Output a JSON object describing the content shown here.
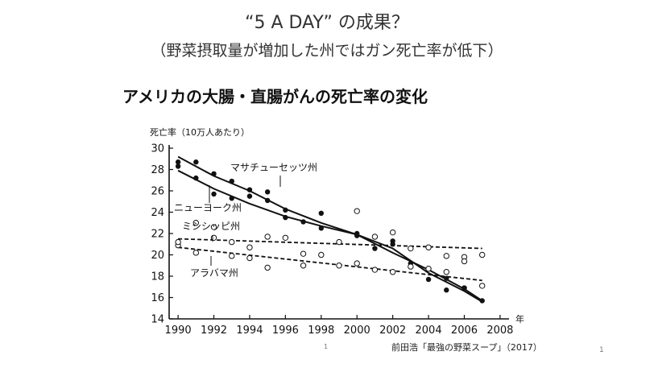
{
  "slide": {
    "title": "“5 A DAY” の成果？",
    "subtitle": "（野菜摂取量が増加した州ではガン死亡率が低下）",
    "page_number_center": "1",
    "page_number_right": "1"
  },
  "chart_heading": "アメリカの大腸・直腸がんの死亡率の変化",
  "credit": "前田浩「最強の野菜スープ」（2017）",
  "chart_data": {
    "type": "scatter",
    "title": "アメリカの大腸・直腸がんの死亡率の変化",
    "ylabel": "死亡率（10万人あたり）",
    "xlabel": "年",
    "xlim": [
      1989.5,
      2008.5
    ],
    "ylim": [
      14,
      30
    ],
    "xticks": [
      1990,
      1992,
      1994,
      1996,
      1998,
      2000,
      2002,
      2004,
      2006,
      2008
    ],
    "yticks": [
      14,
      16,
      18,
      20,
      22,
      24,
      26,
      28,
      30
    ],
    "series": [
      {
        "name": "マサチューセッツ州",
        "marker": "filled-circle",
        "points": [
          [
            1990,
            28.7
          ],
          [
            1991,
            28.7
          ],
          [
            1992,
            27.6
          ],
          [
            1993,
            26.9
          ],
          [
            1994,
            26.1
          ],
          [
            1995,
            25.9
          ],
          [
            1996,
            24.2
          ],
          [
            1998,
            23.9
          ],
          [
            2000,
            22.0
          ],
          [
            2001,
            20.6
          ],
          [
            2002,
            21.3
          ],
          [
            2004,
            17.7
          ],
          [
            2005,
            16.7
          ],
          [
            2006,
            16.9
          ],
          [
            2007,
            15.7
          ]
        ],
        "trend": [
          [
            1990,
            29.2
          ],
          [
            1992,
            27.4
          ],
          [
            1994,
            26.0
          ],
          [
            1996,
            24.3
          ],
          [
            1998,
            23.0
          ],
          [
            2000,
            21.9
          ],
          [
            2002,
            20.6
          ],
          [
            2004,
            18.3
          ],
          [
            2006,
            16.6
          ],
          [
            2007,
            15.6
          ]
        ]
      },
      {
        "name": "ニューヨーク州",
        "marker": "filled-circle",
        "points": [
          [
            1990,
            28.3
          ],
          [
            1991,
            27.2
          ],
          [
            1992,
            25.7
          ],
          [
            1993,
            25.3
          ],
          [
            1994,
            25.5
          ],
          [
            1995,
            25.1
          ],
          [
            1996,
            23.5
          ],
          [
            1997,
            23.1
          ],
          [
            1998,
            22.5
          ],
          [
            2000,
            21.8
          ],
          [
            2002,
            21.0
          ],
          [
            2003,
            19.2
          ],
          [
            2004,
            18.7
          ],
          [
            2005,
            17.8
          ],
          [
            2006,
            16.9
          ]
        ],
        "trend": [
          [
            1990,
            27.9
          ],
          [
            1992,
            26.2
          ],
          [
            1994,
            24.8
          ],
          [
            1996,
            23.6
          ],
          [
            1998,
            22.7
          ],
          [
            2000,
            21.9
          ],
          [
            2002,
            20.2
          ],
          [
            2004,
            18.6
          ],
          [
            2006,
            16.8
          ],
          [
            2007,
            15.7
          ]
        ]
      },
      {
        "name": "ミシシッピ州",
        "marker": "open-circle",
        "points": [
          [
            1990,
            20.9
          ],
          [
            1991,
            23.0
          ],
          [
            1992,
            22.6
          ],
          [
            1993,
            21.2
          ],
          [
            1994,
            20.7
          ],
          [
            1995,
            21.7
          ],
          [
            1996,
            21.6
          ],
          [
            1997,
            20.1
          ],
          [
            1998,
            20.0
          ],
          [
            1999,
            21.2
          ],
          [
            2000,
            24.1
          ],
          [
            2001,
            21.7
          ],
          [
            2002,
            22.1
          ],
          [
            2003,
            20.6
          ],
          [
            2004,
            20.7
          ],
          [
            2005,
            19.9
          ],
          [
            2006,
            19.8
          ],
          [
            2007,
            20.0
          ]
        ],
        "trend": [
          [
            1990,
            21.5
          ],
          [
            2007,
            20.6
          ]
        ],
        "trend_style": "dashed"
      },
      {
        "name": "アラバマ州",
        "marker": "open-circle",
        "points": [
          [
            1990,
            21.2
          ],
          [
            1991,
            20.2
          ],
          [
            1992,
            21.6
          ],
          [
            1993,
            19.9
          ],
          [
            1994,
            19.7
          ],
          [
            1995,
            18.8
          ],
          [
            1997,
            19.0
          ],
          [
            1999,
            19.0
          ],
          [
            2000,
            19.2
          ],
          [
            2001,
            18.6
          ],
          [
            2002,
            18.4
          ],
          [
            2003,
            18.9
          ],
          [
            2004,
            18.7
          ],
          [
            2005,
            18.4
          ],
          [
            2006,
            19.4
          ],
          [
            2007,
            17.1
          ]
        ],
        "trend": [
          [
            1990,
            20.7
          ],
          [
            2007,
            17.6
          ]
        ],
        "trend_style": "dashed"
      }
    ]
  }
}
